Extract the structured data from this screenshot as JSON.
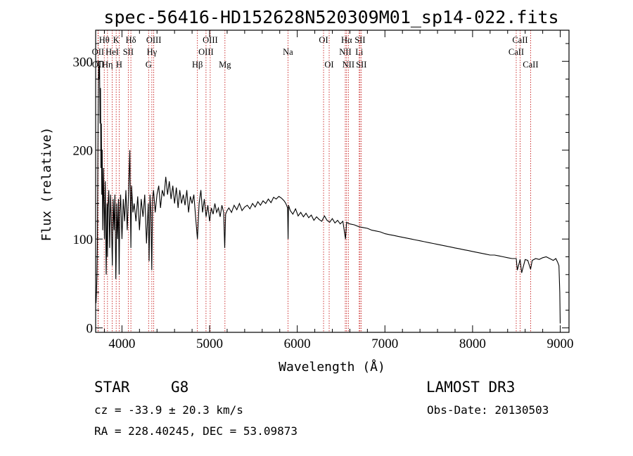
{
  "chart_data": {
    "type": "line",
    "title": "spec-56416-HD152628N520309M01_sp14-022.fits",
    "xlabel": "Wavelength (Å)",
    "ylabel": "Flux (relative)",
    "xlim": [
      3700,
      9100
    ],
    "ylim": [
      -5,
      335
    ],
    "x_ticks": [
      4000,
      5000,
      6000,
      7000,
      8000,
      9000
    ],
    "y_ticks": [
      0,
      100,
      200,
      300
    ],
    "series": [
      {
        "name": "flux",
        "x": [
          3700,
          3705,
          3710,
          3715,
          3720,
          3725,
          3730,
          3735,
          3740,
          3745,
          3750,
          3755,
          3760,
          3765,
          3770,
          3775,
          3780,
          3790,
          3800,
          3810,
          3820,
          3830,
          3835,
          3840,
          3850,
          3860,
          3870,
          3880,
          3890,
          3900,
          3910,
          3920,
          3930,
          3934,
          3940,
          3950,
          3960,
          3968,
          3975,
          3985,
          4000,
          4015,
          4030,
          4045,
          4060,
          4075,
          4090,
          4102,
          4110,
          4125,
          4140,
          4160,
          4180,
          4200,
          4220,
          4240,
          4260,
          4280,
          4300,
          4310,
          4320,
          4330,
          4340,
          4350,
          4360,
          4380,
          4400,
          4420,
          4440,
          4460,
          4480,
          4500,
          4520,
          4540,
          4560,
          4580,
          4600,
          4620,
          4640,
          4660,
          4680,
          4700,
          4720,
          4740,
          4760,
          4780,
          4800,
          4820,
          4840,
          4861,
          4880,
          4900,
          4920,
          4940,
          4960,
          4980,
          5000,
          5020,
          5040,
          5060,
          5080,
          5100,
          5120,
          5140,
          5160,
          5172,
          5183,
          5200,
          5220,
          5250,
          5280,
          5310,
          5340,
          5370,
          5400,
          5430,
          5460,
          5490,
          5520,
          5550,
          5580,
          5610,
          5640,
          5670,
          5700,
          5730,
          5760,
          5790,
          5820,
          5850,
          5870,
          5890,
          5895,
          5900,
          5920,
          5950,
          5980,
          6010,
          6040,
          6070,
          6100,
          6130,
          6160,
          6190,
          6220,
          6250,
          6280,
          6310,
          6340,
          6370,
          6400,
          6430,
          6460,
          6490,
          6520,
          6550,
          6563,
          6575,
          6600,
          6650,
          6700,
          6750,
          6800,
          6850,
          6900,
          6950,
          7000,
          7050,
          7100,
          7150,
          7200,
          7250,
          7300,
          7350,
          7400,
          7450,
          7500,
          7550,
          7600,
          7650,
          7700,
          7750,
          7800,
          7850,
          7900,
          7950,
          8000,
          8050,
          8100,
          8150,
          8200,
          8250,
          8300,
          8350,
          8400,
          8450,
          8498,
          8510,
          8542,
          8560,
          8600,
          8630,
          8662,
          8680,
          8720,
          8760,
          8800,
          8840,
          8880,
          8920,
          8950,
          8970,
          8985,
          8995,
          9000
        ],
        "values": [
          35,
          28,
          40,
          60,
          95,
          185,
          260,
          300,
          280,
          295,
          230,
          270,
          180,
          230,
          150,
          200,
          110,
          180,
          100,
          165,
          60,
          140,
          80,
          135,
          155,
          90,
          150,
          120,
          70,
          145,
          110,
          150,
          55,
          75,
          140,
          100,
          145,
          60,
          130,
          150,
          100,
          145,
          120,
          155,
          110,
          150,
          200,
          90,
          160,
          130,
          140,
          120,
          148,
          110,
          145,
          125,
          150,
          95,
          140,
          75,
          150,
          130,
          65,
          145,
          155,
          130,
          150,
          160,
          135,
          155,
          148,
          170,
          150,
          165,
          145,
          160,
          140,
          158,
          135,
          155,
          140,
          150,
          138,
          155,
          130,
          148,
          140,
          150,
          125,
          100,
          140,
          155,
          130,
          145,
          125,
          138,
          120,
          135,
          128,
          140,
          130,
          135,
          125,
          138,
          130,
          90,
          128,
          132,
          135,
          130,
          138,
          133,
          140,
          132,
          136,
          138,
          134,
          140,
          136,
          142,
          138,
          143,
          140,
          145,
          141,
          147,
          145,
          148,
          146,
          143,
          140,
          135,
          100,
          138,
          132,
          128,
          134,
          126,
          130,
          125,
          129,
          124,
          127,
          121,
          125,
          122,
          120,
          126,
          121,
          119,
          123,
          118,
          121,
          117,
          120,
          100,
          119,
          118,
          117,
          116,
          114,
          113,
          112,
          110,
          109,
          108,
          106,
          105,
          104,
          103,
          102,
          101,
          100,
          99,
          98,
          97,
          96,
          95,
          94,
          93,
          92,
          91,
          90,
          89,
          88,
          87,
          86,
          85,
          84,
          83,
          82,
          82,
          81,
          80,
          79,
          78,
          78,
          65,
          77,
          62,
          77,
          76,
          66,
          76,
          78,
          77,
          79,
          80,
          78,
          76,
          78,
          74,
          70,
          40,
          5
        ]
      }
    ],
    "spectral_lines": [
      {
        "label": "OII",
        "wavelength": 3727,
        "row": 2
      },
      {
        "label": "OII",
        "wavelength": 3729,
        "row": 3
      },
      {
        "label": "Hθ",
        "wavelength": 3798,
        "row": 1
      },
      {
        "label": "Hη",
        "wavelength": 3835,
        "row": 3
      },
      {
        "label": "HeI",
        "wavelength": 3889,
        "row": 2
      },
      {
        "label": "K",
        "wavelength": 3934,
        "row": 1
      },
      {
        "label": "H",
        "wavelength": 3968,
        "row": 3
      },
      {
        "label": "SII",
        "wavelength": 4072,
        "row": 2
      },
      {
        "label": "Hδ",
        "wavelength": 4102,
        "row": 1
      },
      {
        "label": "G",
        "wavelength": 4304,
        "row": 3
      },
      {
        "label": "Hγ",
        "wavelength": 4341,
        "row": 2
      },
      {
        "label": "OIII",
        "wavelength": 4363,
        "row": 1
      },
      {
        "label": "Hβ",
        "wavelength": 4861,
        "row": 3
      },
      {
        "label": "OIII",
        "wavelength": 4959,
        "row": 2
      },
      {
        "label": "OIII",
        "wavelength": 5007,
        "row": 1
      },
      {
        "label": "Mg",
        "wavelength": 5175,
        "row": 3
      },
      {
        "label": "Na",
        "wavelength": 5894,
        "row": 2
      },
      {
        "label": "OI",
        "wavelength": 6300,
        "row": 1
      },
      {
        "label": "OI",
        "wavelength": 6364,
        "row": 3
      },
      {
        "label": "NII",
        "wavelength": 6548,
        "row": 2
      },
      {
        "label": "Hα",
        "wavelength": 6563,
        "row": 1
      },
      {
        "label": "NII",
        "wavelength": 6583,
        "row": 3
      },
      {
        "label": "Li",
        "wavelength": 6707,
        "row": 2
      },
      {
        "label": "SII",
        "wavelength": 6716,
        "row": 1
      },
      {
        "label": "SII",
        "wavelength": 6731,
        "row": 3
      },
      {
        "label": "CaII",
        "wavelength": 8498,
        "row": 2
      },
      {
        "label": "CaII",
        "wavelength": 8542,
        "row": 1
      },
      {
        "label": "CaII",
        "wavelength": 8662,
        "row": 3
      }
    ]
  },
  "info": {
    "object_class": "STAR",
    "subclass": "G8",
    "survey": "LAMOST DR3",
    "redshift": "cz = -33.9 ± 20.3 km/s",
    "obs_date": "Obs-Date: 20130503",
    "coordinates": "RA = 228.40245, DEC =  53.09873"
  },
  "colors": {
    "spectrum": "#000000",
    "line_markers": "#c00000",
    "axes": "#000000",
    "background": "#ffffff"
  }
}
